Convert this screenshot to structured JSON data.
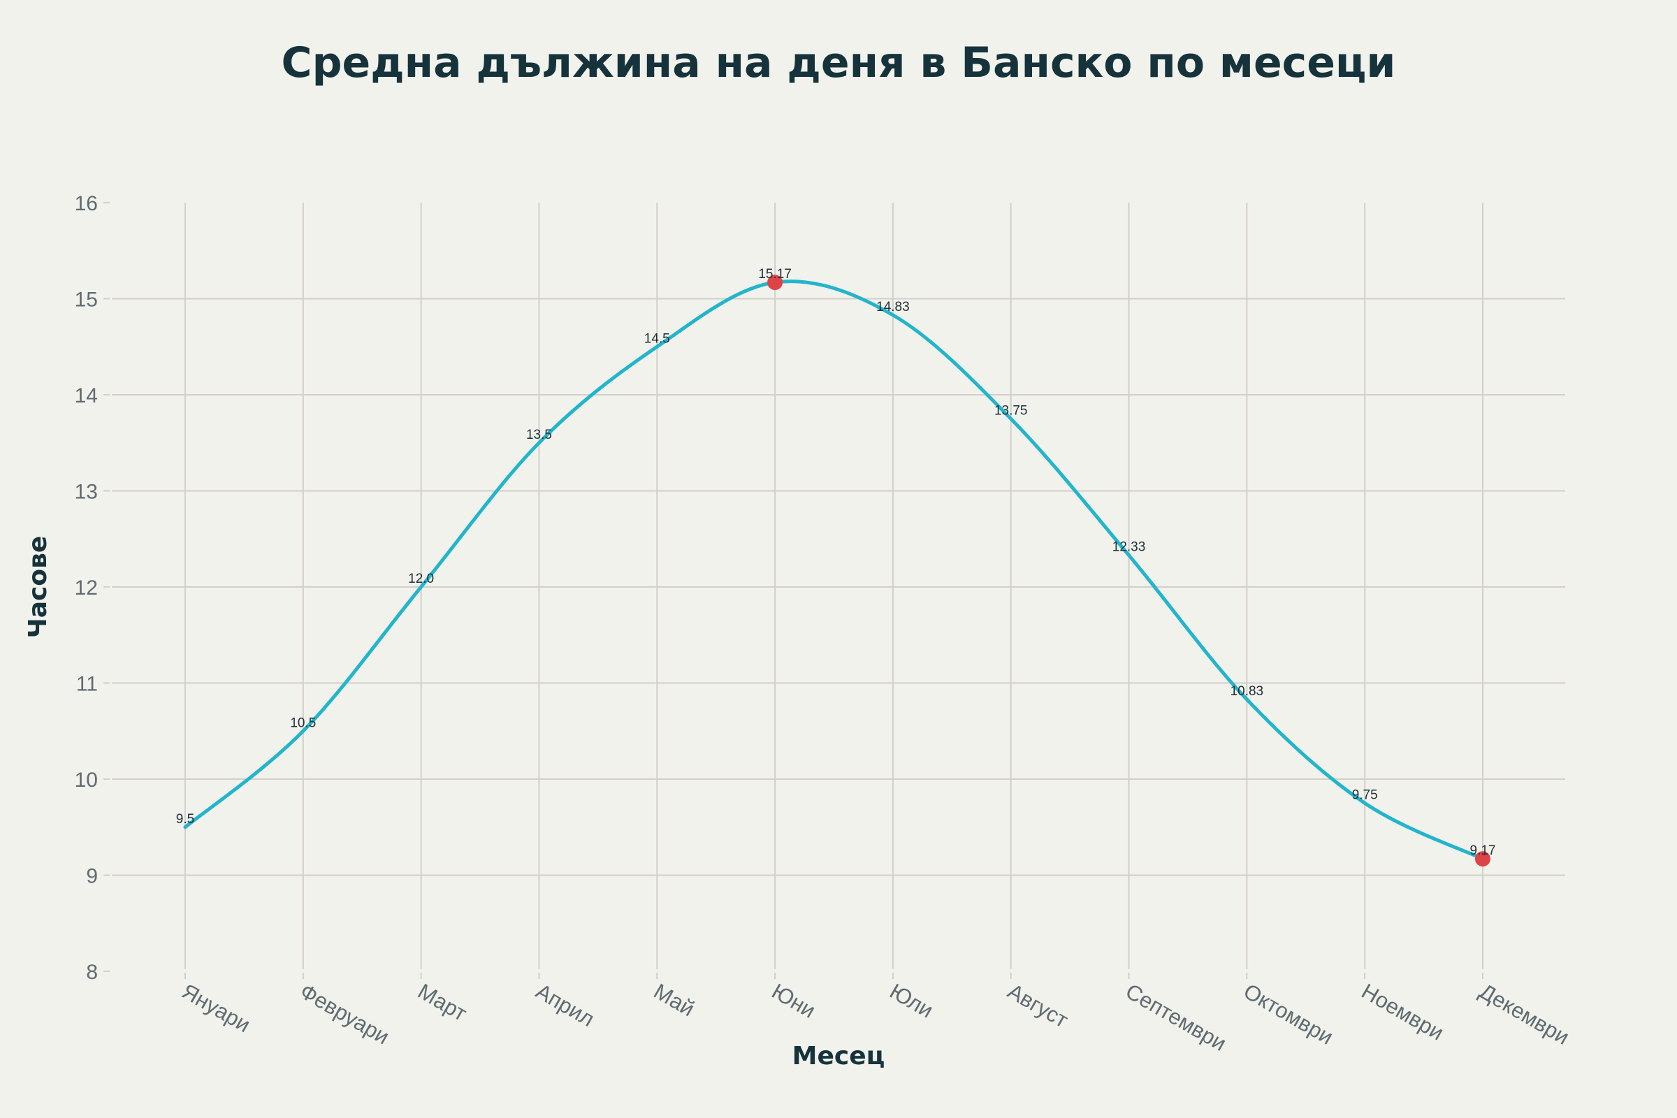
{
  "chart_data": {
    "type": "line",
    "title": "Средна дължина на деня в Банско по месеци",
    "xlabel": "Месец",
    "ylabel": "Часове",
    "categories": [
      "Януари",
      "Февруари",
      "Март",
      "Април",
      "Май",
      "Юни",
      "Юли",
      "Август",
      "Септември",
      "Октомври",
      "Ноември",
      "Декември"
    ],
    "series": [
      {
        "name": "Дължина на деня",
        "values": [
          9.5,
          10.5,
          12.0,
          13.5,
          14.5,
          15.17,
          14.83,
          13.75,
          12.33,
          10.83,
          9.75,
          9.17
        ],
        "labels": [
          "9.5",
          "10.5",
          "12.0",
          "13.5",
          "14.5",
          "15.17",
          "14.83",
          "13.75",
          "12.33",
          "10.83",
          "9.75",
          "9.17"
        ],
        "line_color": "#22b5cc",
        "line_shape": "spline"
      }
    ],
    "highlighted_points": [
      {
        "category": "Юни",
        "value": 15.17,
        "role": "max",
        "color": "#dc4448"
      },
      {
        "category": "Декември",
        "value": 9.17,
        "role": "min",
        "color": "#dc4448"
      }
    ],
    "ylim": [
      8,
      16
    ],
    "yticks": [
      8,
      9,
      10,
      11,
      12,
      13,
      14,
      15,
      16
    ],
    "grid": true,
    "legend": "none",
    "x_tick_angle": 30
  },
  "colors": {
    "background": "#f2f2ed",
    "title": "#16333b",
    "grid": "#d3cfca",
    "tick_text": "#5f6b70",
    "line": "#22b5cc",
    "marker": "#dc4448"
  }
}
